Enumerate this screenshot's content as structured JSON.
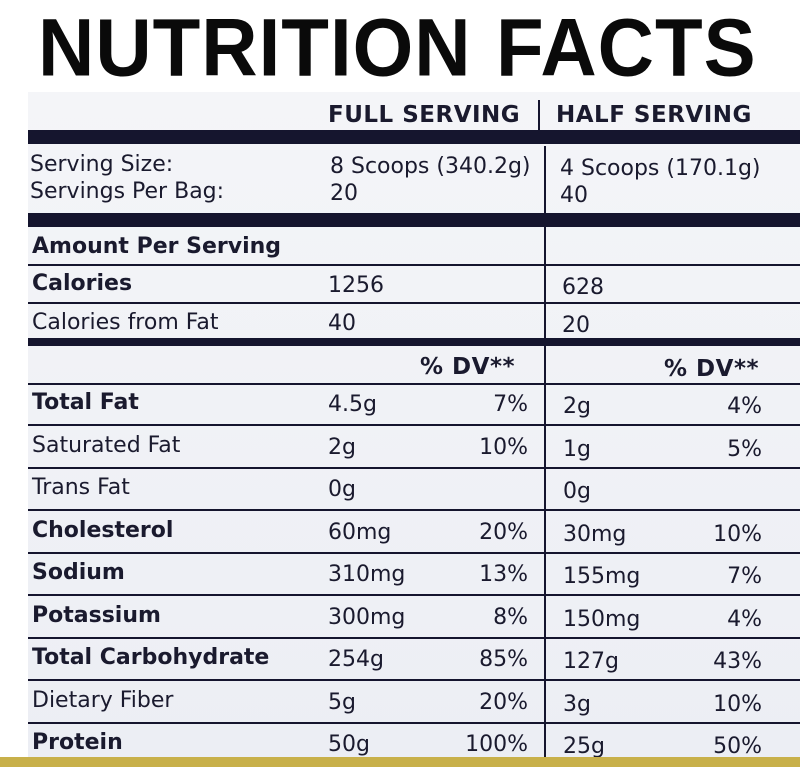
{
  "title": {
    "word1": "NUTRITION",
    "word2": "FACTS"
  },
  "columns": {
    "full": "FULL SERVING",
    "half": "HALF SERVING"
  },
  "serving": {
    "size_label": "Serving Size:",
    "per_bag_label": "Servings Per Bag:",
    "full_size": "8 Scoops (340.2g)",
    "full_per_bag": "20",
    "half_size": "4 Scoops (170.1g)",
    "half_per_bag": "40"
  },
  "amount_per_serving": "Amount Per Serving",
  "calories": {
    "label": "Calories",
    "full": "1256",
    "half": "628"
  },
  "calories_fat": {
    "label": "Calories from Fat",
    "full": "40",
    "half": "20"
  },
  "dv_header": "% DV**",
  "nutrients": [
    {
      "label": "Total Fat",
      "bold": true,
      "full_amt": "4.5g",
      "full_dv": "7%",
      "half_amt": "2g",
      "half_dv": "4%"
    },
    {
      "label": "Saturated Fat",
      "bold": false,
      "full_amt": "2g",
      "full_dv": "10%",
      "half_amt": "1g",
      "half_dv": "5%"
    },
    {
      "label": "Trans Fat",
      "bold": false,
      "full_amt": "0g",
      "full_dv": "",
      "half_amt": "0g",
      "half_dv": ""
    },
    {
      "label": "Cholesterol",
      "bold": true,
      "full_amt": "60mg",
      "full_dv": "20%",
      "half_amt": "30mg",
      "half_dv": "10%"
    },
    {
      "label": "Sodium",
      "bold": true,
      "full_amt": "310mg",
      "full_dv": "13%",
      "half_amt": "155mg",
      "half_dv": "7%"
    },
    {
      "label": "Potassium",
      "bold": true,
      "full_amt": "300mg",
      "full_dv": "8%",
      "half_amt": "150mg",
      "half_dv": "4%"
    },
    {
      "label": "Total Carbohydrate",
      "bold": true,
      "full_amt": "254g",
      "full_dv": "85%",
      "half_amt": "127g",
      "half_dv": "43%"
    },
    {
      "label": "Dietary Fiber",
      "bold": false,
      "full_amt": "5g",
      "full_dv": "20%",
      "half_amt": "3g",
      "half_dv": "10%"
    },
    {
      "label": "Protein",
      "bold": true,
      "full_amt": "50g",
      "full_dv": "100%",
      "half_amt": "25g",
      "half_dv": "50%"
    }
  ]
}
